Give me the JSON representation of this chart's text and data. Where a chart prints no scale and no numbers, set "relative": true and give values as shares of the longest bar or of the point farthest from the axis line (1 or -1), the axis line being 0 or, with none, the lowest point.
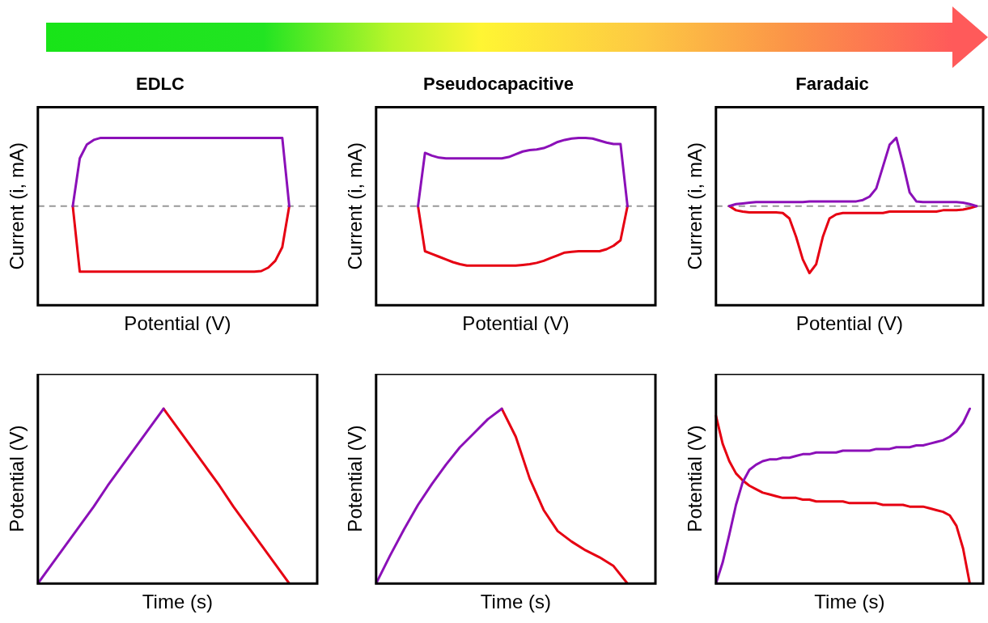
{
  "chart_data": [
    {
      "type": "line",
      "title": "EDLC",
      "xlabel": "Potential (V)",
      "ylabel": "Current (i, mA)",
      "relative": true,
      "categories": [
        null,
        null,
        null,
        null,
        null,
        null,
        null,
        null,
        null,
        null,
        null,
        null,
        null,
        null,
        null,
        null,
        null,
        null,
        null,
        null,
        null,
        null,
        null,
        null,
        null,
        null,
        null,
        null,
        null,
        null,
        null,
        null,
        null,
        null,
        null,
        null,
        null,
        null,
        null,
        null,
        null
      ],
      "ref_lines": [
        {
          "axis": "y",
          "value": 0,
          "color": "#999999",
          "line_style": "dashed"
        }
      ],
      "series": [
        {
          "color": "#8b10b8",
          "values": [
            null,
            null,
            null,
            null,
            null,
            0,
            0.7,
            0.9,
            0.97,
            1,
            1,
            1,
            1,
            1,
            1,
            1,
            1,
            1,
            1,
            1,
            1,
            1,
            1,
            1,
            1,
            1,
            1,
            1,
            1,
            1,
            1,
            1,
            1,
            1,
            1,
            1,
            0,
            null,
            null,
            null,
            null
          ]
        },
        {
          "color": "#e60012",
          "values": [
            null,
            null,
            null,
            null,
            null,
            0,
            -0.96,
            -0.96,
            -0.96,
            -0.96,
            -0.96,
            -0.96,
            -0.96,
            -0.96,
            -0.96,
            -0.96,
            -0.96,
            -0.96,
            -0.96,
            -0.96,
            -0.96,
            -0.96,
            -0.96,
            -0.96,
            -0.96,
            -0.96,
            -0.96,
            -0.96,
            -0.96,
            -0.96,
            -0.96,
            -0.96,
            -0.95,
            -0.9,
            -0.8,
            -0.6,
            0,
            null,
            null,
            null,
            null
          ]
        }
      ]
    },
    {
      "type": "line",
      "title": "Pseudocapacitive",
      "xlabel": "Potential (V)",
      "ylabel": "Current (i, mA)",
      "relative": true,
      "categories": [
        null,
        null,
        null,
        null,
        null,
        null,
        null,
        null,
        null,
        null,
        null,
        null,
        null,
        null,
        null,
        null,
        null,
        null,
        null,
        null,
        null,
        null,
        null,
        null,
        null,
        null,
        null,
        null,
        null,
        null,
        null,
        null,
        null,
        null,
        null,
        null,
        null,
        null,
        null,
        null,
        null
      ],
      "ref_lines": [
        {
          "axis": "y",
          "value": 0,
          "color": "#999999",
          "line_style": "dashed"
        }
      ],
      "series": [
        {
          "color": "#8b10b8",
          "values": [
            null,
            null,
            null,
            null,
            null,
            null,
            0,
            0.78,
            0.74,
            0.71,
            0.7,
            0.7,
            0.7,
            0.7,
            0.7,
            0.7,
            0.7,
            0.7,
            0.7,
            0.72,
            0.76,
            0.8,
            0.82,
            0.83,
            0.85,
            0.89,
            0.94,
            0.97,
            0.99,
            1,
            1,
            0.99,
            0.96,
            0.93,
            0.91,
            0.91,
            0,
            null,
            null,
            null,
            null
          ]
        },
        {
          "color": "#e60012",
          "values": [
            null,
            null,
            null,
            null,
            null,
            null,
            0,
            -0.66,
            -0.7,
            -0.74,
            -0.78,
            -0.82,
            -0.85,
            -0.87,
            -0.87,
            -0.87,
            -0.87,
            -0.87,
            -0.87,
            -0.87,
            -0.87,
            -0.86,
            -0.85,
            -0.83,
            -0.8,
            -0.76,
            -0.72,
            -0.68,
            -0.67,
            -0.66,
            -0.66,
            -0.66,
            -0.66,
            -0.63,
            -0.58,
            -0.5,
            0,
            null,
            null,
            null,
            null
          ]
        }
      ]
    },
    {
      "type": "line",
      "title": "Faradaic",
      "xlabel": "Potential (V)",
      "ylabel": "Current (i, mA)",
      "relative": true,
      "categories": [
        null,
        null,
        null,
        null,
        null,
        null,
        null,
        null,
        null,
        null,
        null,
        null,
        null,
        null,
        null,
        null,
        null,
        null,
        null,
        null,
        null,
        null,
        null,
        null,
        null,
        null,
        null,
        null,
        null,
        null,
        null,
        null,
        null,
        null,
        null,
        null,
        null,
        null,
        null,
        null,
        null
      ],
      "ref_lines": [
        {
          "axis": "y",
          "value": 0,
          "color": "#999999",
          "line_style": "dashed"
        }
      ],
      "series": [
        {
          "color": "#8b10b8",
          "values": [
            null,
            null,
            0,
            0.03,
            0.04,
            0.05,
            0.06,
            0.06,
            0.06,
            0.06,
            0.06,
            0.06,
            0.06,
            0.06,
            0.07,
            0.07,
            0.07,
            0.07,
            0.07,
            0.07,
            0.07,
            0.07,
            0.09,
            0.14,
            0.26,
            0.58,
            0.9,
            1,
            0.62,
            0.2,
            0.07,
            0.06,
            0.06,
            0.06,
            0.06,
            0.06,
            0.06,
            0.05,
            0.03,
            0,
            null
          ]
        },
        {
          "color": "#e60012",
          "values": [
            null,
            null,
            0,
            -0.06,
            -0.08,
            -0.09,
            -0.09,
            -0.09,
            -0.09,
            -0.09,
            -0.1,
            -0.18,
            -0.45,
            -0.78,
            -0.98,
            -0.85,
            -0.45,
            -0.18,
            -0.12,
            -0.1,
            -0.1,
            -0.1,
            -0.1,
            -0.1,
            -0.1,
            -0.1,
            -0.08,
            -0.08,
            -0.08,
            -0.08,
            -0.08,
            -0.08,
            -0.08,
            -0.08,
            -0.06,
            -0.06,
            -0.06,
            -0.05,
            -0.03,
            0,
            null
          ]
        }
      ]
    },
    {
      "type": "line",
      "xlabel": "Time (s)",
      "ylabel": "Potential (V)",
      "relative": true,
      "categories": [
        null,
        null,
        null,
        null,
        null,
        null,
        null,
        null,
        null,
        null,
        null,
        null,
        null,
        null,
        null,
        null,
        null,
        null,
        null,
        null,
        null
      ],
      "series": [
        {
          "color": "#8b10b8",
          "values": [
            0,
            0.11,
            0.22,
            0.33,
            0.44,
            0.56,
            0.67,
            0.78,
            0.89,
            1,
            null,
            null,
            null,
            null,
            null,
            null,
            null,
            null,
            null,
            null,
            null
          ]
        },
        {
          "color": "#e60012",
          "values": [
            null,
            null,
            null,
            null,
            null,
            null,
            null,
            null,
            null,
            1,
            0.89,
            0.78,
            0.67,
            0.56,
            0.44,
            0.33,
            0.22,
            0.11,
            0,
            null,
            null
          ]
        }
      ]
    },
    {
      "type": "line",
      "xlabel": "Time (s)",
      "ylabel": "Potential (V)",
      "relative": true,
      "categories": [
        null,
        null,
        null,
        null,
        null,
        null,
        null,
        null,
        null,
        null,
        null,
        null,
        null,
        null,
        null,
        null,
        null,
        null,
        null,
        null,
        null
      ],
      "series": [
        {
          "color": "#8b10b8",
          "values": [
            0,
            0.16,
            0.31,
            0.45,
            0.57,
            0.68,
            0.78,
            0.86,
            0.94,
            1,
            null,
            null,
            null,
            null,
            null,
            null,
            null,
            null,
            null,
            null,
            null
          ]
        },
        {
          "color": "#e60012",
          "values": [
            null,
            null,
            null,
            null,
            null,
            null,
            null,
            null,
            null,
            1,
            0.84,
            0.6,
            0.42,
            0.3,
            0.24,
            0.19,
            0.15,
            0.1,
            0,
            null,
            null
          ]
        }
      ]
    },
    {
      "type": "line",
      "xlabel": "Time (s)",
      "ylabel": "Potential (V)",
      "relative": true,
      "categories": [
        null,
        null,
        null,
        null,
        null,
        null,
        null,
        null,
        null,
        null,
        null,
        null,
        null,
        null,
        null,
        null,
        null,
        null,
        null,
        null,
        null,
        null,
        null,
        null,
        null,
        null,
        null,
        null,
        null,
        null,
        null,
        null,
        null,
        null,
        null,
        null,
        null,
        null,
        null,
        null,
        null
      ],
      "series": [
        {
          "color": "#8b10b8",
          "values": [
            0,
            0.12,
            0.28,
            0.45,
            0.58,
            0.65,
            0.68,
            0.7,
            0.71,
            0.71,
            0.72,
            0.72,
            0.73,
            0.74,
            0.74,
            0.75,
            0.75,
            0.75,
            0.75,
            0.76,
            0.76,
            0.76,
            0.76,
            0.76,
            0.77,
            0.77,
            0.77,
            0.78,
            0.78,
            0.78,
            0.79,
            0.79,
            0.8,
            0.81,
            0.82,
            0.84,
            0.87,
            0.92,
            1,
            null,
            null
          ]
        },
        {
          "color": "#e60012",
          "values": [
            0.96,
            0.8,
            0.7,
            0.63,
            0.59,
            0.56,
            0.54,
            0.52,
            0.51,
            0.5,
            0.49,
            0.49,
            0.49,
            0.48,
            0.48,
            0.47,
            0.47,
            0.47,
            0.47,
            0.47,
            0.46,
            0.46,
            0.46,
            0.46,
            0.46,
            0.45,
            0.45,
            0.45,
            0.45,
            0.44,
            0.44,
            0.44,
            0.43,
            0.42,
            0.41,
            0.39,
            0.33,
            0.2,
            0,
            null,
            null
          ]
        }
      ]
    }
  ]
}
